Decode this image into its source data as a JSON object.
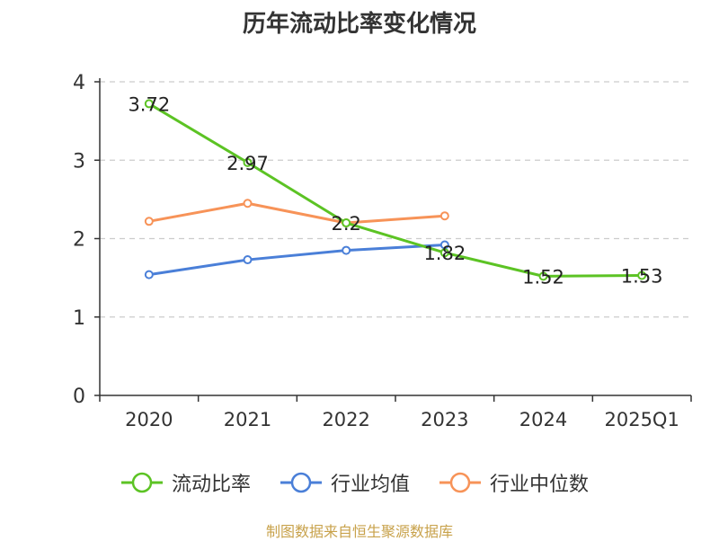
{
  "chart_data": {
    "type": "line",
    "title": "历年流动比率变化情况",
    "categories": [
      "2020",
      "2021",
      "2022",
      "2023",
      "2024",
      "2025Q1"
    ],
    "ylim": [
      0,
      4
    ],
    "yticks": [
      "0",
      "1",
      "2",
      "3",
      "4"
    ],
    "grid": true,
    "legend_position": "bottom",
    "series": [
      {
        "name": "流动比率",
        "color": "#5cc324",
        "values": [
          3.72,
          2.97,
          2.2,
          1.82,
          1.52,
          1.53
        ],
        "labels": [
          "3.72",
          "2.97",
          "2.2",
          "1.82",
          "1.52",
          "1.53"
        ]
      },
      {
        "name": "行业均值",
        "color": "#4a7fd8",
        "values": [
          1.54,
          1.73,
          1.85,
          1.92,
          null,
          null
        ]
      },
      {
        "name": "行业中位数",
        "color": "#f79358",
        "values": [
          2.22,
          2.45,
          2.2,
          2.29,
          null,
          null
        ]
      }
    ]
  },
  "source": "制图数据来自恒生聚源数据库"
}
